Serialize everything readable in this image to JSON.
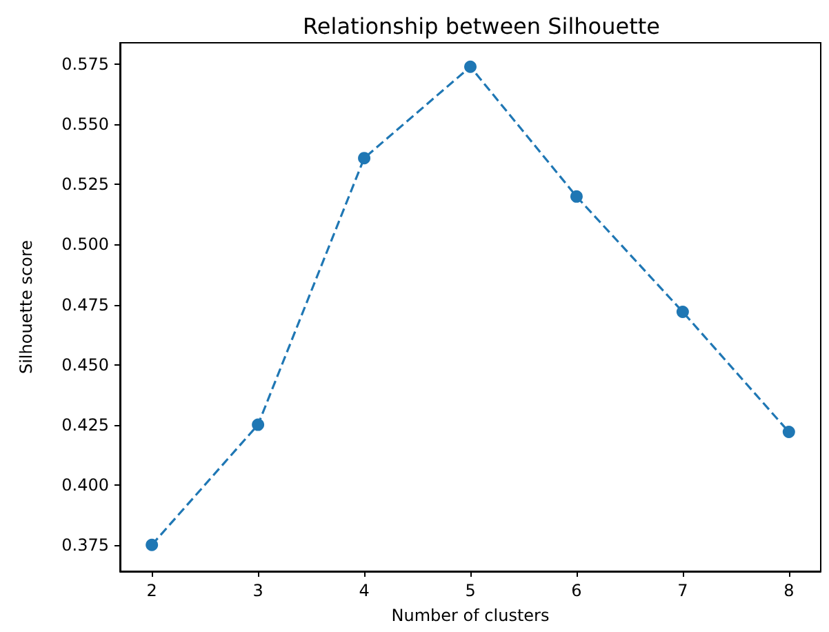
{
  "chart_data": {
    "type": "line",
    "title": "Relationship between Silhouette",
    "xlabel": "Number of clusters",
    "ylabel": "Silhouette score",
    "x": [
      2,
      3,
      4,
      5,
      6,
      7,
      8
    ],
    "series": [
      {
        "color": "#1f77b4",
        "values": [
          0.375,
          0.425,
          0.536,
          0.574,
          0.52,
          0.472,
          0.422
        ]
      }
    ],
    "xlim": [
      1.7,
      8.3
    ],
    "xticks": [
      2,
      3,
      4,
      5,
      6,
      7,
      8
    ],
    "ylim": [
      0.364,
      0.584
    ],
    "yticks": [
      {
        "value": 0.375,
        "label": "0.375"
      },
      {
        "value": 0.4,
        "label": "0.400"
      },
      {
        "value": 0.425,
        "label": "0.425"
      },
      {
        "value": 0.45,
        "label": "0.450"
      },
      {
        "value": 0.475,
        "label": "0.475"
      },
      {
        "value": 0.5,
        "label": "0.500"
      },
      {
        "value": 0.525,
        "label": "0.525"
      },
      {
        "value": 0.55,
        "label": "0.550"
      },
      {
        "value": 0.575,
        "label": "0.575"
      }
    ],
    "grid": false,
    "marker": "circle",
    "line_style": "dashed"
  }
}
